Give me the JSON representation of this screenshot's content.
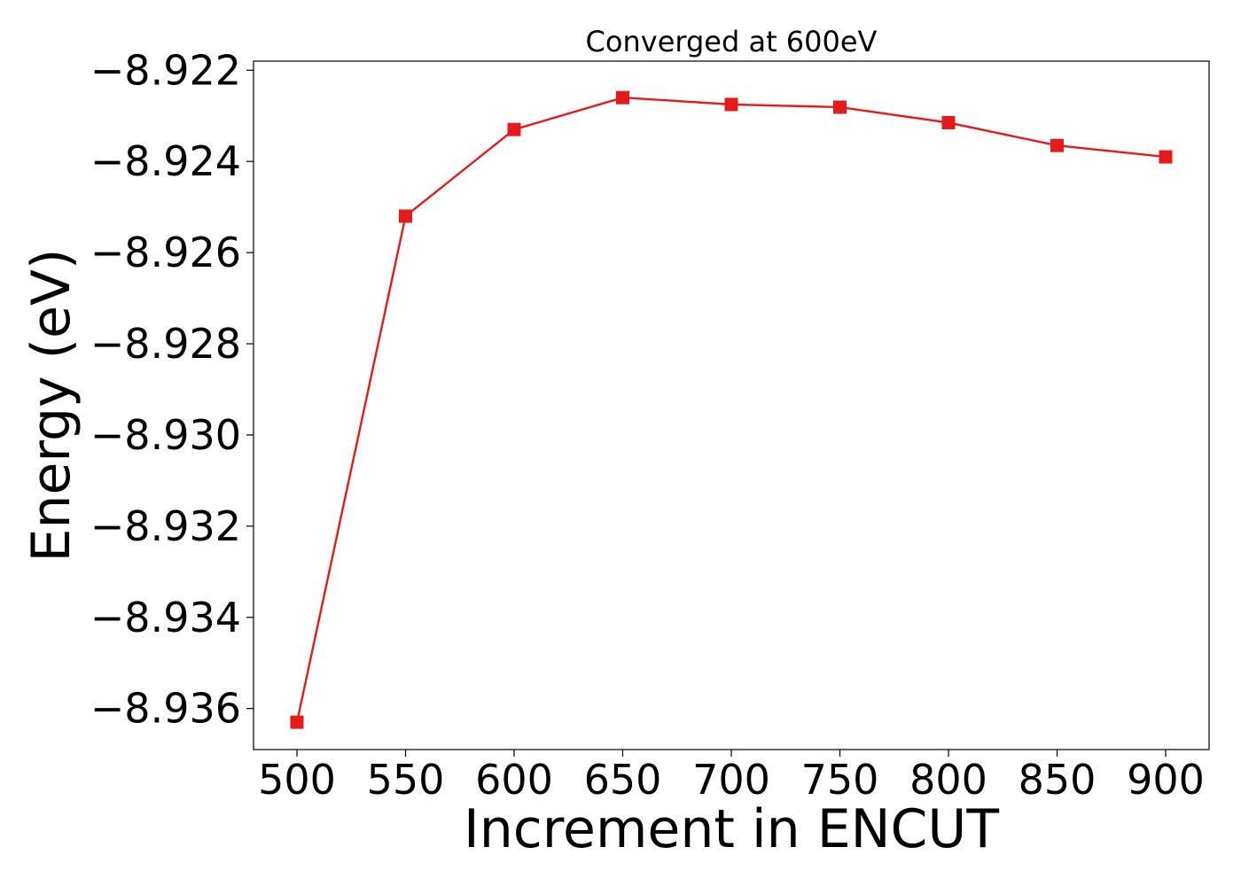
{
  "chart_data": {
    "type": "line",
    "title": "Converged at 600eV",
    "xlabel": "Increment in ENCUT",
    "ylabel": "Energy (eV)",
    "x": [
      500,
      550,
      600,
      650,
      700,
      750,
      800,
      850,
      900
    ],
    "series": [
      {
        "values": [
          -8.9363,
          -8.9252,
          -8.9233,
          -8.9226,
          -8.92275,
          -8.92281,
          -8.92315,
          -8.92365,
          -8.9239
        ],
        "color": "#e41a1c",
        "marker": "square"
      }
    ],
    "xlim": [
      480,
      920
    ],
    "ylim": [
      -8.9369,
      -8.9218
    ],
    "xticks": [
      500,
      550,
      600,
      650,
      700,
      750,
      800,
      850,
      900
    ],
    "xtick_labels": [
      "500",
      "550",
      "600",
      "650",
      "700",
      "750",
      "800",
      "850",
      "900"
    ],
    "yticks": [
      -8.922,
      -8.924,
      -8.926,
      -8.928,
      -8.93,
      -8.932,
      -8.934,
      -8.936
    ],
    "ytick_labels": [
      "−8.922",
      "−8.924",
      "−8.926",
      "−8.928",
      "−8.930",
      "−8.932",
      "−8.934",
      "−8.936"
    ],
    "grid": false,
    "legend": false
  }
}
